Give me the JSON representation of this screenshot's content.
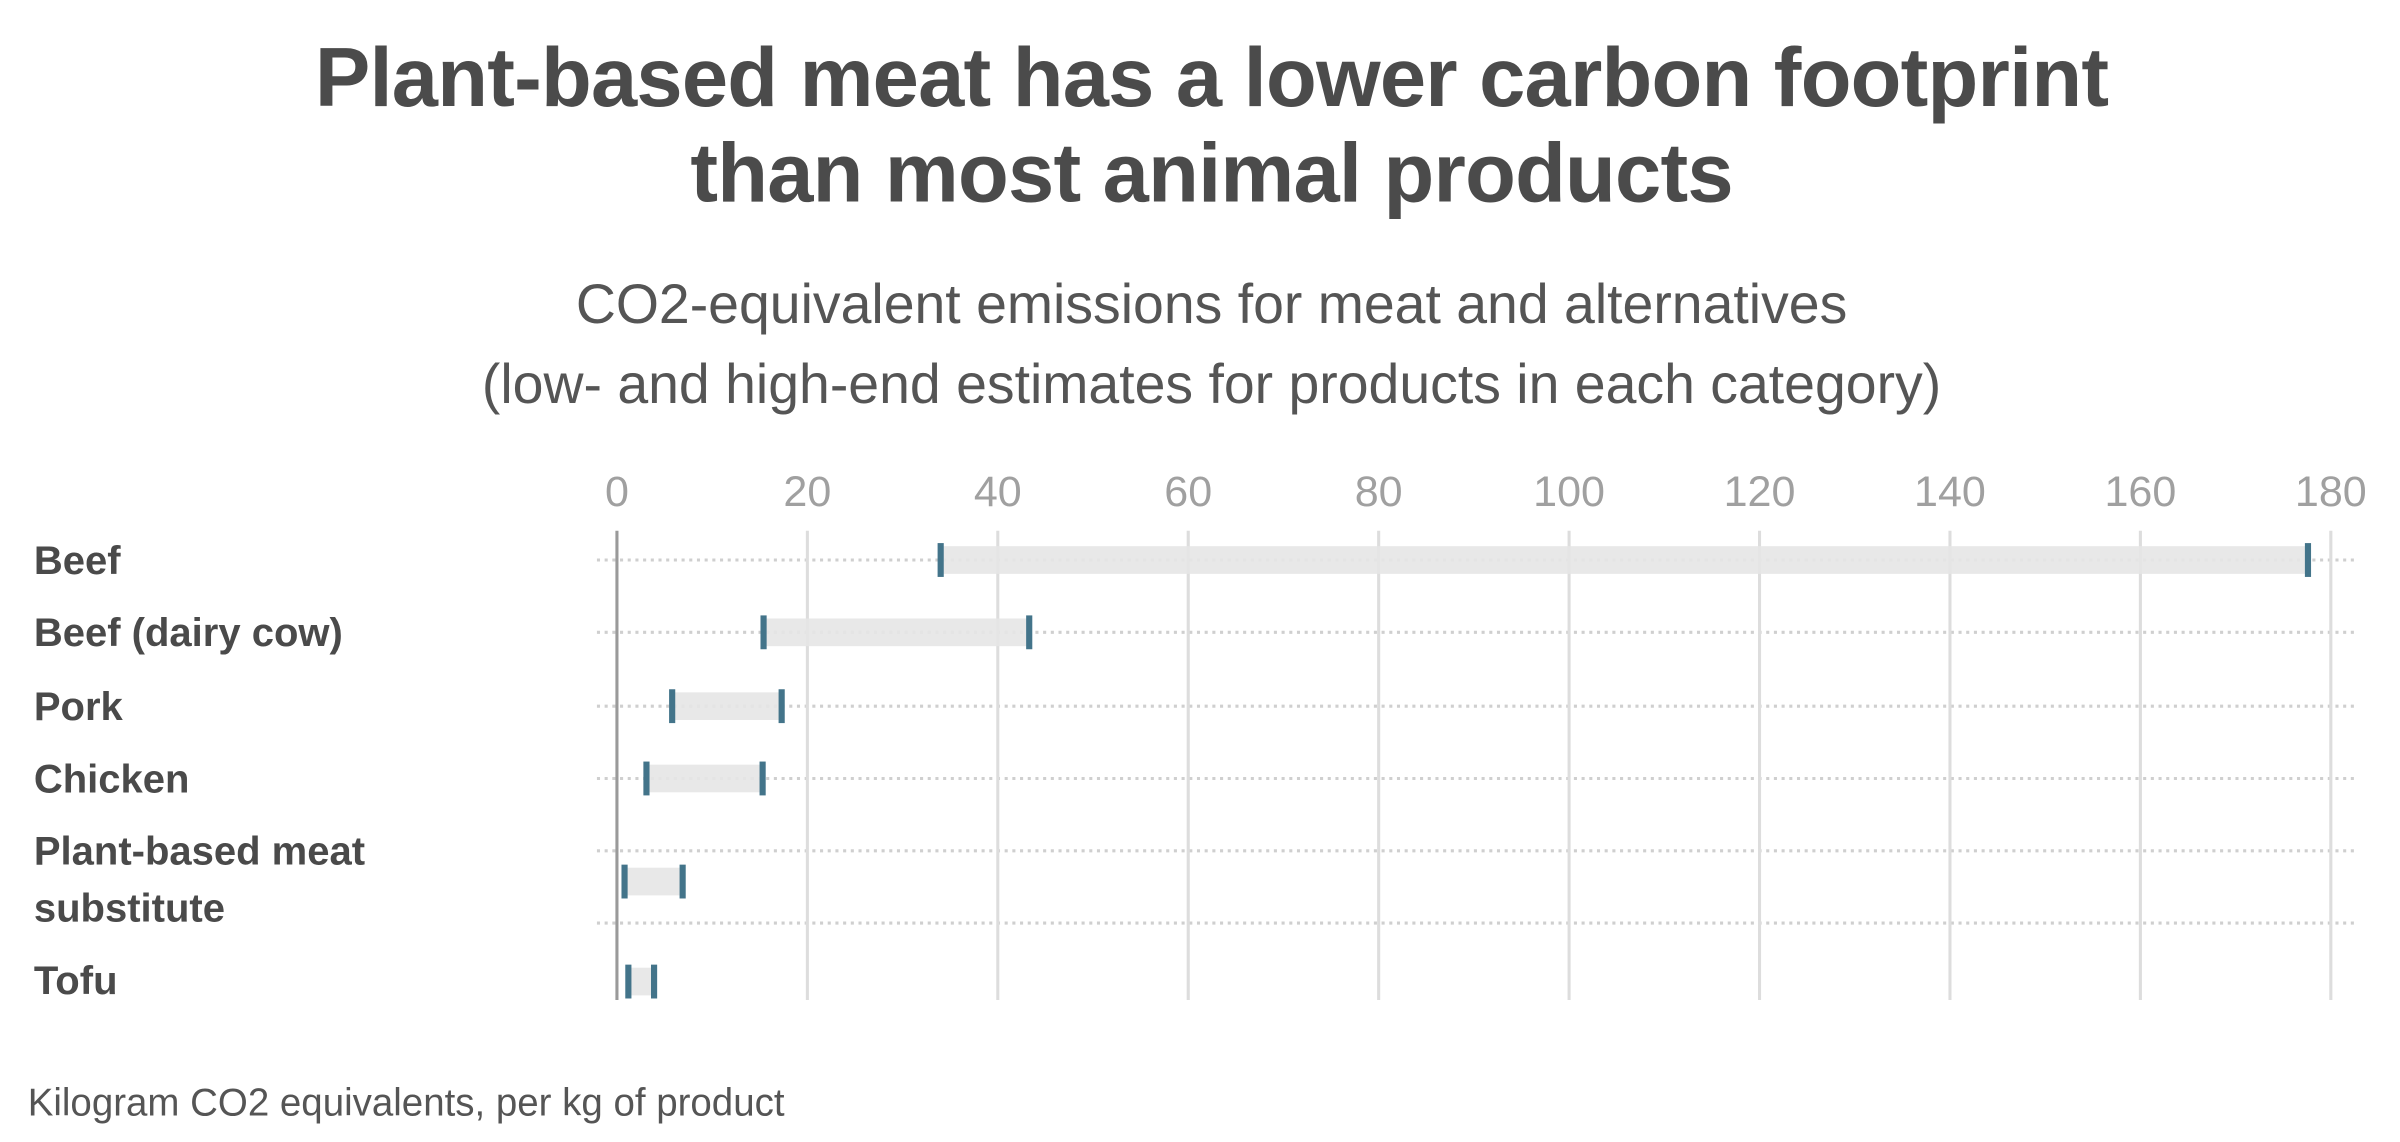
{
  "title_lines": [
    "Plant-based meat has a lower carbon footprint",
    "than most animal products"
  ],
  "subtitle_lines": [
    "CO2-equivalent emissions for meat and alternatives",
    "(low- and high-end estimates for products in each category)"
  ],
  "footer": "Kilogram CO2 equivalents, per kg of product",
  "colors": {
    "cap": "#43748a",
    "range": "#e6e6e6",
    "title": "#4b4b4b"
  },
  "chart_data": {
    "type": "range-bar",
    "orientation": "horizontal",
    "categories": [
      "Beef",
      "Beef (dairy cow)",
      "Pork",
      "Chicken",
      "Plant-based meat substitute",
      "Tofu"
    ],
    "category_lines": [
      [
        "Beef"
      ],
      [
        "Beef (dairy cow)"
      ],
      [
        "Pork"
      ],
      [
        "Chicken"
      ],
      [
        "Plant-based meat",
        "substitute"
      ],
      [
        "Tofu"
      ]
    ],
    "low": [
      34,
      15.4,
      5.8,
      3.1,
      0.8,
      1.2
    ],
    "high": [
      177.6,
      43.3,
      17.3,
      15.3,
      6.9,
      3.9
    ],
    "xlim": [
      0,
      180
    ],
    "xticks": [
      0,
      20,
      40,
      60,
      80,
      100,
      120,
      140,
      160,
      180
    ],
    "xlabel": "Kilogram CO2 equivalents, per kg of product",
    "axis_position": "top",
    "grid": true
  }
}
